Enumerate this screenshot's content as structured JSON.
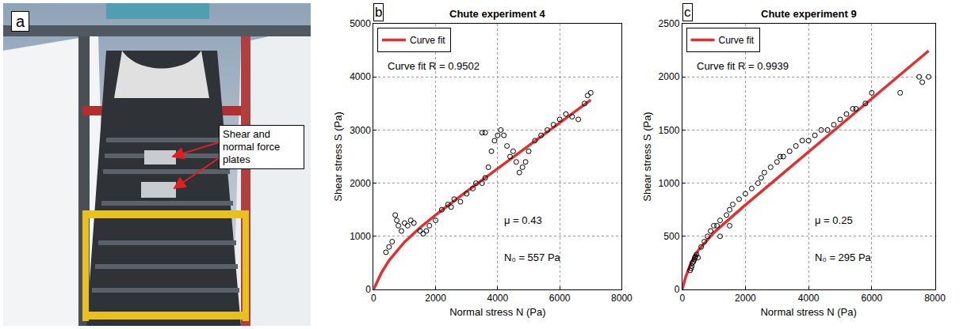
{
  "photo_panel": {
    "panel_label": "a",
    "callout": "Shear and normal force plates"
  },
  "chart_data": [
    {
      "type": "scatter",
      "panel_label": "b",
      "title": "Chute experiment 4",
      "x_label": "Normal stress N (Pa)",
      "y_label": "Shear stress S (Pa)",
      "xlim": [
        0,
        8000
      ],
      "xticks": [
        0,
        2000,
        4000,
        6000,
        8000
      ],
      "ylim": [
        0,
        5000
      ],
      "yticks": [
        0,
        1000,
        2000,
        3000,
        4000,
        5000
      ],
      "grid": true,
      "legend": "upper left",
      "annotations": [
        "Curve fit R = 0.9502",
        "μ = 0.43",
        "N₀ = 557 Pa"
      ],
      "series": [
        {
          "name": "Curve fit",
          "type": "line",
          "color": "#e03030",
          "line_style": "solid",
          "x": [
            0,
            100,
            250,
            500,
            1000,
            1500,
            2000,
            3000,
            4000,
            5000,
            6000,
            7000
          ],
          "values": [
            0,
            135,
            310,
            545,
            895,
            1165,
            1400,
            1845,
            2275,
            2705,
            3135,
            3565
          ]
        },
        {
          "type": "scatter",
          "color": "#000000",
          "marker": "circle-open",
          "x": [
            400,
            500,
            600,
            700,
            750,
            800,
            900,
            1000,
            1100,
            1200,
            1300,
            1500,
            1600,
            1700,
            1800,
            2000,
            2200,
            2400,
            2500,
            2600,
            2800,
            3000,
            3200,
            3300,
            3500,
            3500,
            3600,
            3600,
            3700,
            3800,
            3900,
            4000,
            4100,
            4200,
            4300,
            4400,
            4500,
            4600,
            4700,
            4800,
            4900,
            5000,
            5200,
            5400,
            5600,
            5800,
            6000,
            6200,
            6400,
            6600,
            6800,
            6900,
            7000
          ],
          "values": [
            700,
            800,
            900,
            1400,
            1300,
            1200,
            1100,
            1250,
            1200,
            1300,
            1250,
            1100,
            1050,
            1100,
            1200,
            1300,
            1500,
            1600,
            1550,
            1700,
            1650,
            1800,
            1900,
            2000,
            2000,
            2950,
            2100,
            2950,
            2300,
            2600,
            2800,
            2900,
            3000,
            2900,
            2700,
            2500,
            2600,
            2400,
            2200,
            2300,
            2400,
            2600,
            2800,
            2900,
            3000,
            3100,
            3200,
            3300,
            3250,
            3200,
            3500,
            3650,
            3700
          ]
        }
      ]
    },
    {
      "type": "scatter",
      "panel_label": "c",
      "title": "Chute experiment 9",
      "x_label": "Normal stress N (Pa)",
      "y_label": "Shear stress S (Pa)",
      "xlim": [
        0,
        8000
      ],
      "xticks": [
        0,
        2000,
        4000,
        6000,
        8000
      ],
      "ylim": [
        0,
        2500
      ],
      "yticks": [
        0,
        500,
        1000,
        1500,
        2000,
        2500
      ],
      "grid": true,
      "legend": "upper left",
      "annotations": [
        "Curve fit R = 0.9939",
        "μ = 0.25",
        "N₀ = 295 Pa"
      ],
      "series": [
        {
          "name": "Curve fit",
          "type": "line",
          "color": "#e03030",
          "line_style": "solid",
          "x": [
            0,
            100,
            250,
            500,
            1000,
            2000,
            3000,
            4000,
            5000,
            6000,
            7000,
            7800
          ],
          "values": [
            0,
            110,
            230,
            365,
            535,
            795,
            1045,
            1295,
            1545,
            1795,
            2045,
            2245
          ]
        },
        {
          "type": "scatter",
          "color": "#000000",
          "marker": "circle-open",
          "x": [
            250,
            280,
            300,
            320,
            350,
            380,
            400,
            420,
            450,
            500,
            600,
            700,
            800,
            900,
            1000,
            1100,
            1200,
            1200,
            1400,
            1500,
            1500,
            1600,
            1800,
            2000,
            2200,
            2400,
            2500,
            2600,
            2800,
            3000,
            3100,
            3200,
            3400,
            3600,
            3800,
            4000,
            4200,
            4400,
            4600,
            4800,
            5000,
            5200,
            5400,
            5500,
            5800,
            6000,
            6900,
            7500,
            7600,
            7800
          ],
          "values": [
            180,
            200,
            220,
            250,
            260,
            280,
            300,
            310,
            330,
            300,
            400,
            450,
            500,
            550,
            600,
            600,
            650,
            500,
            700,
            750,
            600,
            800,
            850,
            900,
            950,
            1000,
            1050,
            1100,
            1150,
            1200,
            1250,
            1250,
            1300,
            1350,
            1400,
            1400,
            1450,
            1500,
            1500,
            1550,
            1600,
            1650,
            1700,
            1700,
            1750,
            1850,
            1850,
            2000,
            1950,
            2000
          ]
        }
      ]
    }
  ]
}
